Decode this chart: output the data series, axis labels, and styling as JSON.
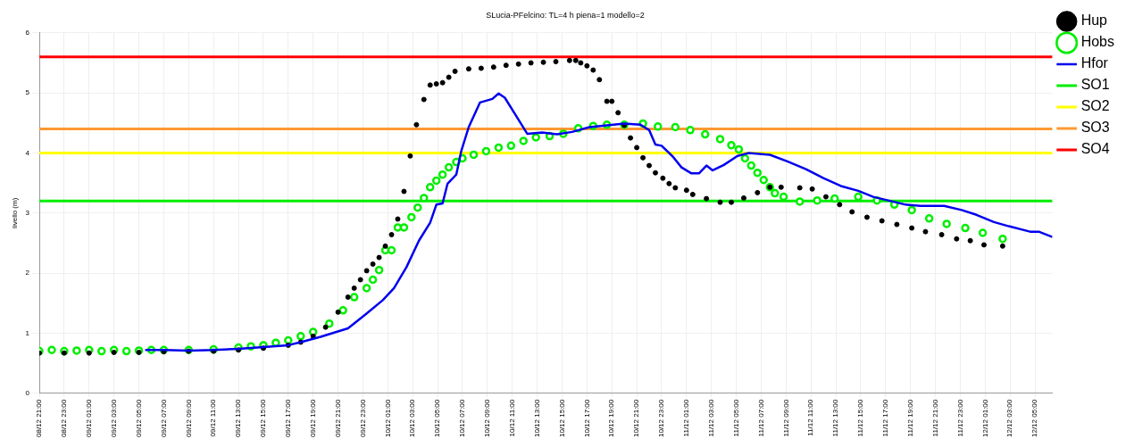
{
  "chart_data": {
    "type": "scatter",
    "title": "SLucia-PFelcino: TL=4 h piena=1 modello=2",
    "ylabel": "livello (m)",
    "xlim": [
      "--12-08T21:00",
      "--12-12T06:24"
    ],
    "ylim": [
      0,
      6
    ],
    "yticks": [
      0,
      1,
      2,
      3,
      4,
      5,
      6
    ],
    "xticks": [
      {
        "value": "--12-08T21:00",
        "label": "08/12 21:00"
      },
      {
        "value": "--12-08T23:00",
        "label": "08/12 23:00"
      },
      {
        "value": "--12-09T01:00",
        "label": "09/12 01:00"
      },
      {
        "value": "--12-09T03:00",
        "label": "09/12 03:00"
      },
      {
        "value": "--12-09T05:00",
        "label": "09/12 05:00"
      },
      {
        "value": "--12-09T07:00",
        "label": "09/12 07:00"
      },
      {
        "value": "--12-09T09:00",
        "label": "09/12 09:00"
      },
      {
        "value": "--12-09T11:00",
        "label": "09/12 11:00"
      },
      {
        "value": "--12-09T13:00",
        "label": "09/12 13:00"
      },
      {
        "value": "--12-09T15:00",
        "label": "09/12 15:00"
      },
      {
        "value": "--12-09T17:00",
        "label": "09/12 17:00"
      },
      {
        "value": "--12-09T19:00",
        "label": "09/12 19:00"
      },
      {
        "value": "--12-09T21:00",
        "label": "09/12 21:00"
      },
      {
        "value": "--12-09T23:00",
        "label": "09/12 23:00"
      },
      {
        "value": "--12-10T01:00",
        "label": "10/12 01:00"
      },
      {
        "value": "--12-10T03:00",
        "label": "10/12 03:00"
      },
      {
        "value": "--12-10T05:00",
        "label": "10/12 05:00"
      },
      {
        "value": "--12-10T07:00",
        "label": "10/12 07:00"
      },
      {
        "value": "--12-10T09:00",
        "label": "10/12 09:00"
      },
      {
        "value": "--12-10T11:00",
        "label": "10/12 11:00"
      },
      {
        "value": "--12-10T13:00",
        "label": "10/12 13:00"
      },
      {
        "value": "--12-10T15:00",
        "label": "10/12 15:00"
      },
      {
        "value": "--12-10T17:00",
        "label": "10/12 17:00"
      },
      {
        "value": "--12-10T19:00",
        "label": "10/12 19:00"
      },
      {
        "value": "--12-10T21:00",
        "label": "10/12 21:00"
      },
      {
        "value": "--12-10T23:00",
        "label": "10/12 23:00"
      },
      {
        "value": "--12-11T01:00",
        "label": "11/12 01:00"
      },
      {
        "value": "--12-11T03:00",
        "label": "11/12 03:00"
      },
      {
        "value": "--12-11T05:00",
        "label": "11/12 05:00"
      },
      {
        "value": "--12-11T07:00",
        "label": "11/12 07:00"
      },
      {
        "value": "--12-11T09:00",
        "label": "11/12 09:00"
      },
      {
        "value": "--12-11T11:00",
        "label": "11/12 11:00"
      },
      {
        "value": "--12-11T13:00",
        "label": "11/12 13:00"
      },
      {
        "value": "--12-11T15:00",
        "label": "11/12 15:00"
      },
      {
        "value": "--12-11T17:00",
        "label": "11/12 17:00"
      },
      {
        "value": "--12-11T19:00",
        "label": "11/12 19:00"
      },
      {
        "value": "--12-11T21:00",
        "label": "11/12 21:00"
      },
      {
        "value": "--12-11T23:00",
        "label": "11/12 23:00"
      },
      {
        "value": "--12-12T01:00",
        "label": "12/12 01:00"
      },
      {
        "value": "--12-12T03:00",
        "label": "12/12 03:00"
      },
      {
        "value": "--12-12T05:00",
        "label": "12/12 05:00"
      }
    ],
    "grid": true,
    "legend": "top right",
    "series": [
      {
        "name": "Hup",
        "marker": "circle",
        "color": "#000000",
        "x": [
          "--12-08T21:00",
          "--12-08T23:00",
          "--12-09T01:00",
          "--12-09T03:00",
          "--12-09T05:00",
          "--12-09T07:00",
          "--12-09T09:00",
          "--12-09T11:00",
          "--12-09T13:00",
          "--12-09T15:00",
          "--12-09T17:00",
          "--12-09T18:00",
          "--12-09T19:00",
          "--12-09T20:00",
          "--12-09T21:00",
          "--12-09T21:48",
          "--12-09T22:18",
          "--12-09T22:48",
          "--12-09T23:18",
          "--12-09T23:48",
          "--12-10T00:18",
          "--12-10T00:48",
          "--12-10T01:18",
          "--12-10T01:48",
          "--12-10T02:18",
          "--12-10T02:48",
          "--12-10T03:18",
          "--12-10T03:54",
          "--12-10T04:24",
          "--12-10T04:54",
          "--12-10T05:24",
          "--12-10T05:54",
          "--12-10T06:24",
          "--12-10T07:30",
          "--12-10T08:30",
          "--12-10T09:30",
          "--12-10T10:30",
          "--12-10T11:30",
          "--12-10T12:30",
          "--12-10T13:30",
          "--12-10T14:30",
          "--12-10T15:36",
          "--12-10T16:06",
          "--12-10T16:30",
          "--12-10T17:00",
          "--12-10T17:30",
          "--12-10T18:00",
          "--12-10T18:36",
          "--12-10T19:00",
          "--12-10T19:30",
          "--12-10T20:00",
          "--12-10T20:30",
          "--12-10T21:00",
          "--12-10T21:30",
          "--12-10T22:00",
          "--12-10T22:30",
          "--12-10T23:06",
          "--12-10T23:36",
          "--12-11T00:06",
          "--12-11T01:00",
          "--12-11T01:30",
          "--12-11T02:36",
          "--12-11T03:42",
          "--12-11T04:36",
          "--12-11T05:36",
          "--12-11T06:42",
          "--12-11T07:42",
          "--12-11T08:36",
          "--12-11T10:06",
          "--12-11T11:06",
          "--12-11T12:12",
          "--12-11T13:18",
          "--12-11T14:18",
          "--12-11T15:30",
          "--12-11T16:42",
          "--12-11T17:54",
          "--12-11T19:06",
          "--12-11T20:12",
          "--12-11T21:30",
          "--12-11T22:42",
          "--12-11T23:48",
          "--12-12T00:54",
          "--12-12T02:24"
        ],
        "values": [
          0.67,
          0.67,
          0.67,
          0.68,
          0.68,
          0.69,
          0.7,
          0.7,
          0.72,
          0.75,
          0.8,
          0.85,
          0.95,
          1.1,
          1.35,
          1.6,
          1.75,
          1.89,
          2.04,
          2.15,
          2.26,
          2.45,
          2.64,
          2.9,
          3.36,
          3.95,
          4.47,
          4.89,
          5.13,
          5.15,
          5.17,
          5.26,
          5.36,
          5.4,
          5.41,
          5.43,
          5.46,
          5.48,
          5.5,
          5.51,
          5.52,
          5.54,
          5.54,
          5.5,
          5.45,
          5.38,
          5.22,
          4.86,
          4.86,
          4.67,
          4.46,
          4.25,
          4.09,
          3.92,
          3.79,
          3.67,
          3.58,
          3.49,
          3.42,
          3.38,
          3.31,
          3.24,
          3.18,
          3.18,
          3.25,
          3.34,
          3.43,
          3.43,
          3.42,
          3.4,
          3.27,
          3.14,
          3.02,
          2.93,
          2.87,
          2.81,
          2.75,
          2.69,
          2.64,
          2.57,
          2.54,
          2.47,
          2.45
        ]
      },
      {
        "name": "Hobs",
        "marker": "circle",
        "color": "#00ee00",
        "x": [
          "--12-08T21:00",
          "--12-08T22:00",
          "--12-08T23:00",
          "--12-09T00:00",
          "--12-09T01:00",
          "--12-09T02:00",
          "--12-09T03:00",
          "--12-09T04:00",
          "--12-09T05:00",
          "--12-09T06:00",
          "--12-09T07:00",
          "--12-09T09:00",
          "--12-09T11:00",
          "--12-09T13:00",
          "--12-09T14:00",
          "--12-09T15:00",
          "--12-09T16:00",
          "--12-09T17:00",
          "--12-09T18:00",
          "--12-09T19:00",
          "--12-09T20:18",
          "--12-09T21:24",
          "--12-09T22:18",
          "--12-09T23:18",
          "--12-09T23:48",
          "--12-10T00:18",
          "--12-10T00:48",
          "--12-10T01:18",
          "--12-10T01:48",
          "--12-10T02:18",
          "--12-10T02:54",
          "--12-10T03:24",
          "--12-10T03:54",
          "--12-10T04:24",
          "--12-10T04:54",
          "--12-10T05:24",
          "--12-10T05:54",
          "--12-10T06:30",
          "--12-10T07:00",
          "--12-10T07:54",
          "--12-10T08:54",
          "--12-10T09:54",
          "--12-10T10:54",
          "--12-10T11:54",
          "--12-10T12:54",
          "--12-10T14:00",
          "--12-10T15:06",
          "--12-10T16:18",
          "--12-10T17:30",
          "--12-10T18:36",
          "--12-10T20:00",
          "--12-10T21:30",
          "--12-10T22:42",
          "--12-11T00:06",
          "--12-11T01:18",
          "--12-11T02:30",
          "--12-11T03:42",
          "--12-11T04:36",
          "--12-11T05:12",
          "--12-11T05:42",
          "--12-11T06:12",
          "--12-11T06:42",
          "--12-11T07:12",
          "--12-11T07:42",
          "--12-11T08:06",
          "--12-11T08:48",
          "--12-11T10:06",
          "--12-11T11:30",
          "--12-11T12:54",
          "--12-11T14:48",
          "--12-11T16:18",
          "--12-11T17:42",
          "--12-11T19:06",
          "--12-11T20:30",
          "--12-11T21:54",
          "--12-11T23:24",
          "--12-12T00:48",
          "--12-12T02:24"
        ],
        "values": [
          0.7,
          0.72,
          0.7,
          0.71,
          0.72,
          0.7,
          0.72,
          0.7,
          0.71,
          0.72,
          0.72,
          0.72,
          0.73,
          0.76,
          0.78,
          0.8,
          0.84,
          0.88,
          0.95,
          1.02,
          1.16,
          1.38,
          1.6,
          1.75,
          1.89,
          2.05,
          2.38,
          2.38,
          2.76,
          2.76,
          2.93,
          3.09,
          3.25,
          3.43,
          3.54,
          3.64,
          3.76,
          3.85,
          3.91,
          3.97,
          4.03,
          4.09,
          4.12,
          4.2,
          4.26,
          4.28,
          4.32,
          4.41,
          4.45,
          4.47,
          4.47,
          4.49,
          4.44,
          4.43,
          4.38,
          4.31,
          4.23,
          4.13,
          4.06,
          3.91,
          3.79,
          3.67,
          3.55,
          3.43,
          3.33,
          3.27,
          3.19,
          3.21,
          3.24,
          3.27,
          3.21,
          3.14,
          3.05,
          2.91,
          2.82,
          2.75,
          2.67,
          2.57
        ]
      },
      {
        "name": "Hfor",
        "type": "line",
        "marker": "none",
        "line_style": "solid",
        "color": "#0000ee",
        "x": [
          "--12-09T05:30",
          "--12-09T07:00",
          "--12-09T09:00",
          "--12-09T11:00",
          "--12-09T13:00",
          "--12-09T15:00",
          "--12-09T17:00",
          "--12-09T18:00",
          "--12-09T19:36",
          "--12-09T21:48",
          "--12-09T23:12",
          "--12-10T00:36",
          "--12-10T01:30",
          "--12-10T02:30",
          "--12-10T03:30",
          "--12-10T04:24",
          "--12-10T04:54",
          "--12-10T05:24",
          "--12-10T05:48",
          "--12-10T06:30",
          "--12-10T06:54",
          "--12-10T07:30",
          "--12-10T08:24",
          "--12-10T09:24",
          "--12-10T09:54",
          "--12-10T10:24",
          "--12-10T11:18",
          "--12-10T12:12",
          "--12-10T13:24",
          "--12-10T14:36",
          "--12-10T15:48",
          "--12-10T17:12",
          "--12-10T18:36",
          "--12-10T20:00",
          "--12-10T21:18",
          "--12-10T22:00",
          "--12-10T22:30",
          "--12-10T23:00",
          "--12-10T23:54",
          "--12-11T00:36",
          "--12-11T01:24",
          "--12-11T02:00",
          "--12-11T02:36",
          "--12-11T03:06",
          "--12-11T04:00",
          "--12-11T05:06",
          "--12-11T06:00",
          "--12-11T07:42",
          "--12-11T09:06",
          "--12-11T10:36",
          "--12-11T12:00",
          "--12-11T13:24",
          "--12-11T14:48",
          "--12-11T16:00",
          "--12-11T17:12",
          "--12-11T18:36",
          "--12-11T19:48",
          "--12-11T21:42",
          "--12-11T23:06",
          "--12-12T00:18",
          "--12-12T01:42",
          "--12-12T02:54",
          "--12-12T04:36",
          "--12-12T05:18",
          "--12-12T06:24"
        ],
        "values": [
          0.72,
          0.72,
          0.71,
          0.72,
          0.74,
          0.77,
          0.8,
          0.85,
          0.94,
          1.08,
          1.31,
          1.55,
          1.75,
          2.1,
          2.54,
          2.84,
          3.14,
          3.16,
          3.49,
          3.64,
          4.03,
          4.43,
          4.84,
          4.9,
          4.99,
          4.92,
          4.62,
          4.32,
          4.34,
          4.31,
          4.35,
          4.43,
          4.46,
          4.49,
          4.47,
          4.38,
          4.14,
          4.12,
          3.94,
          3.76,
          3.66,
          3.66,
          3.79,
          3.71,
          3.8,
          3.95,
          4,
          3.97,
          3.86,
          3.73,
          3.58,
          3.45,
          3.37,
          3.27,
          3.21,
          3.14,
          3.12,
          3.12,
          3.05,
          2.97,
          2.85,
          2.78,
          2.69,
          2.69,
          2.6
        ]
      }
    ],
    "ref_lines": [
      {
        "axis": "y",
        "value": 3.2,
        "label": "SO1",
        "color": "#00ee00"
      },
      {
        "axis": "y",
        "value": 4,
        "label": "SO2",
        "color": "#ffff00"
      },
      {
        "axis": "y",
        "value": 4.4,
        "label": "SO3",
        "color": "#ff9933"
      },
      {
        "axis": "y",
        "value": 5.6,
        "label": "SO4",
        "color": "#ff0000"
      }
    ]
  }
}
